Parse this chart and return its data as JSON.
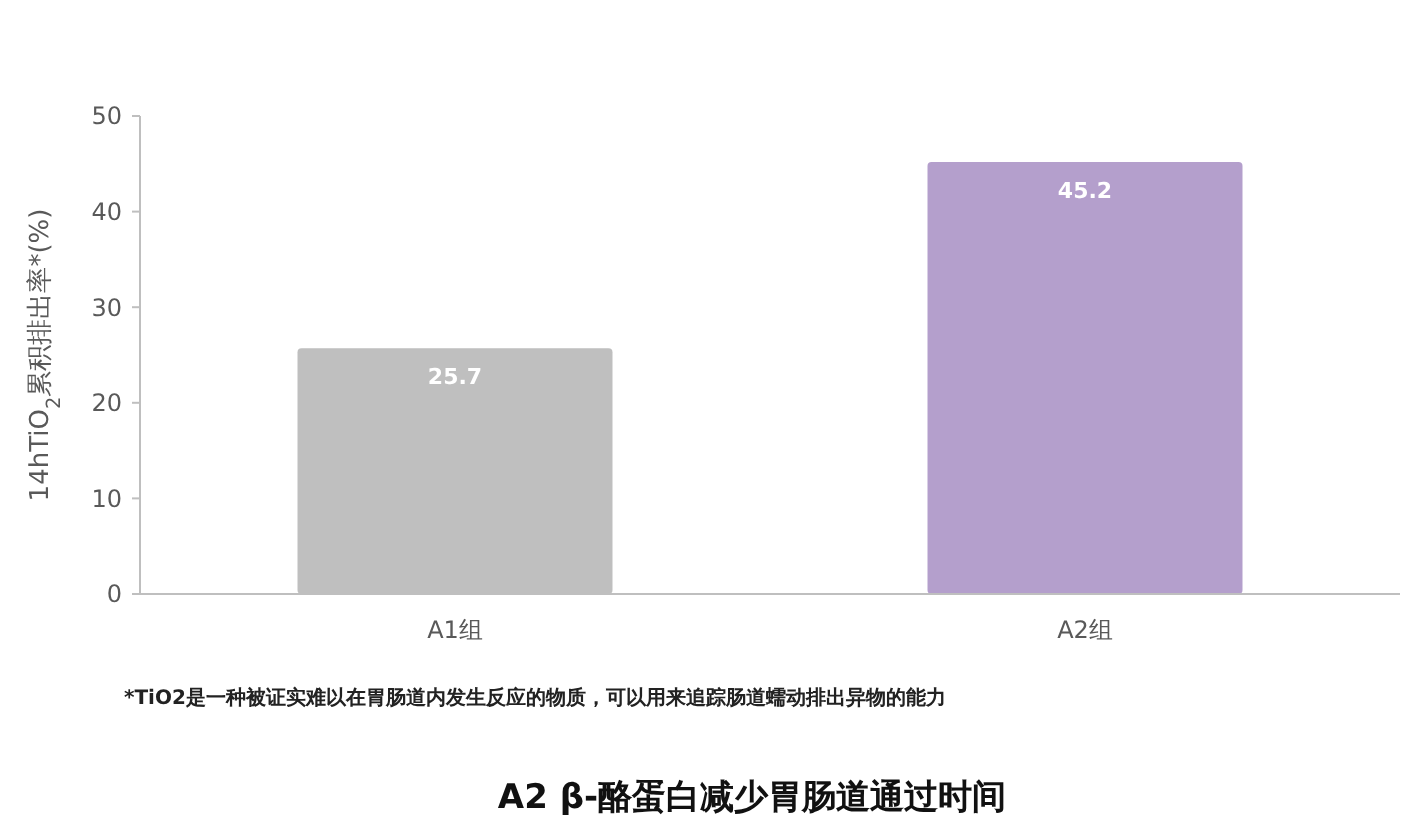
{
  "chart_data": {
    "type": "bar",
    "title": "A2 β-酪蛋白减少胃肠道通过时间",
    "ylabel": "14hTiO$_{2}$累积排出率*(%)",
    "categories": [
      "A1组",
      "A2组"
    ],
    "values": [
      25.7,
      45.2
    ],
    "colors": [
      "#bfbfbf",
      "#b49fcc"
    ],
    "ylim": [
      0,
      50
    ],
    "yticks": [
      0,
      10,
      20,
      30,
      40,
      50
    ],
    "grid": false,
    "data_labels": true,
    "annotations": [
      "*TiO2是一种被证实难以在胃肠道内发生反应的物质，可以用来追踪肠道蠕动排出异物的能力"
    ]
  }
}
